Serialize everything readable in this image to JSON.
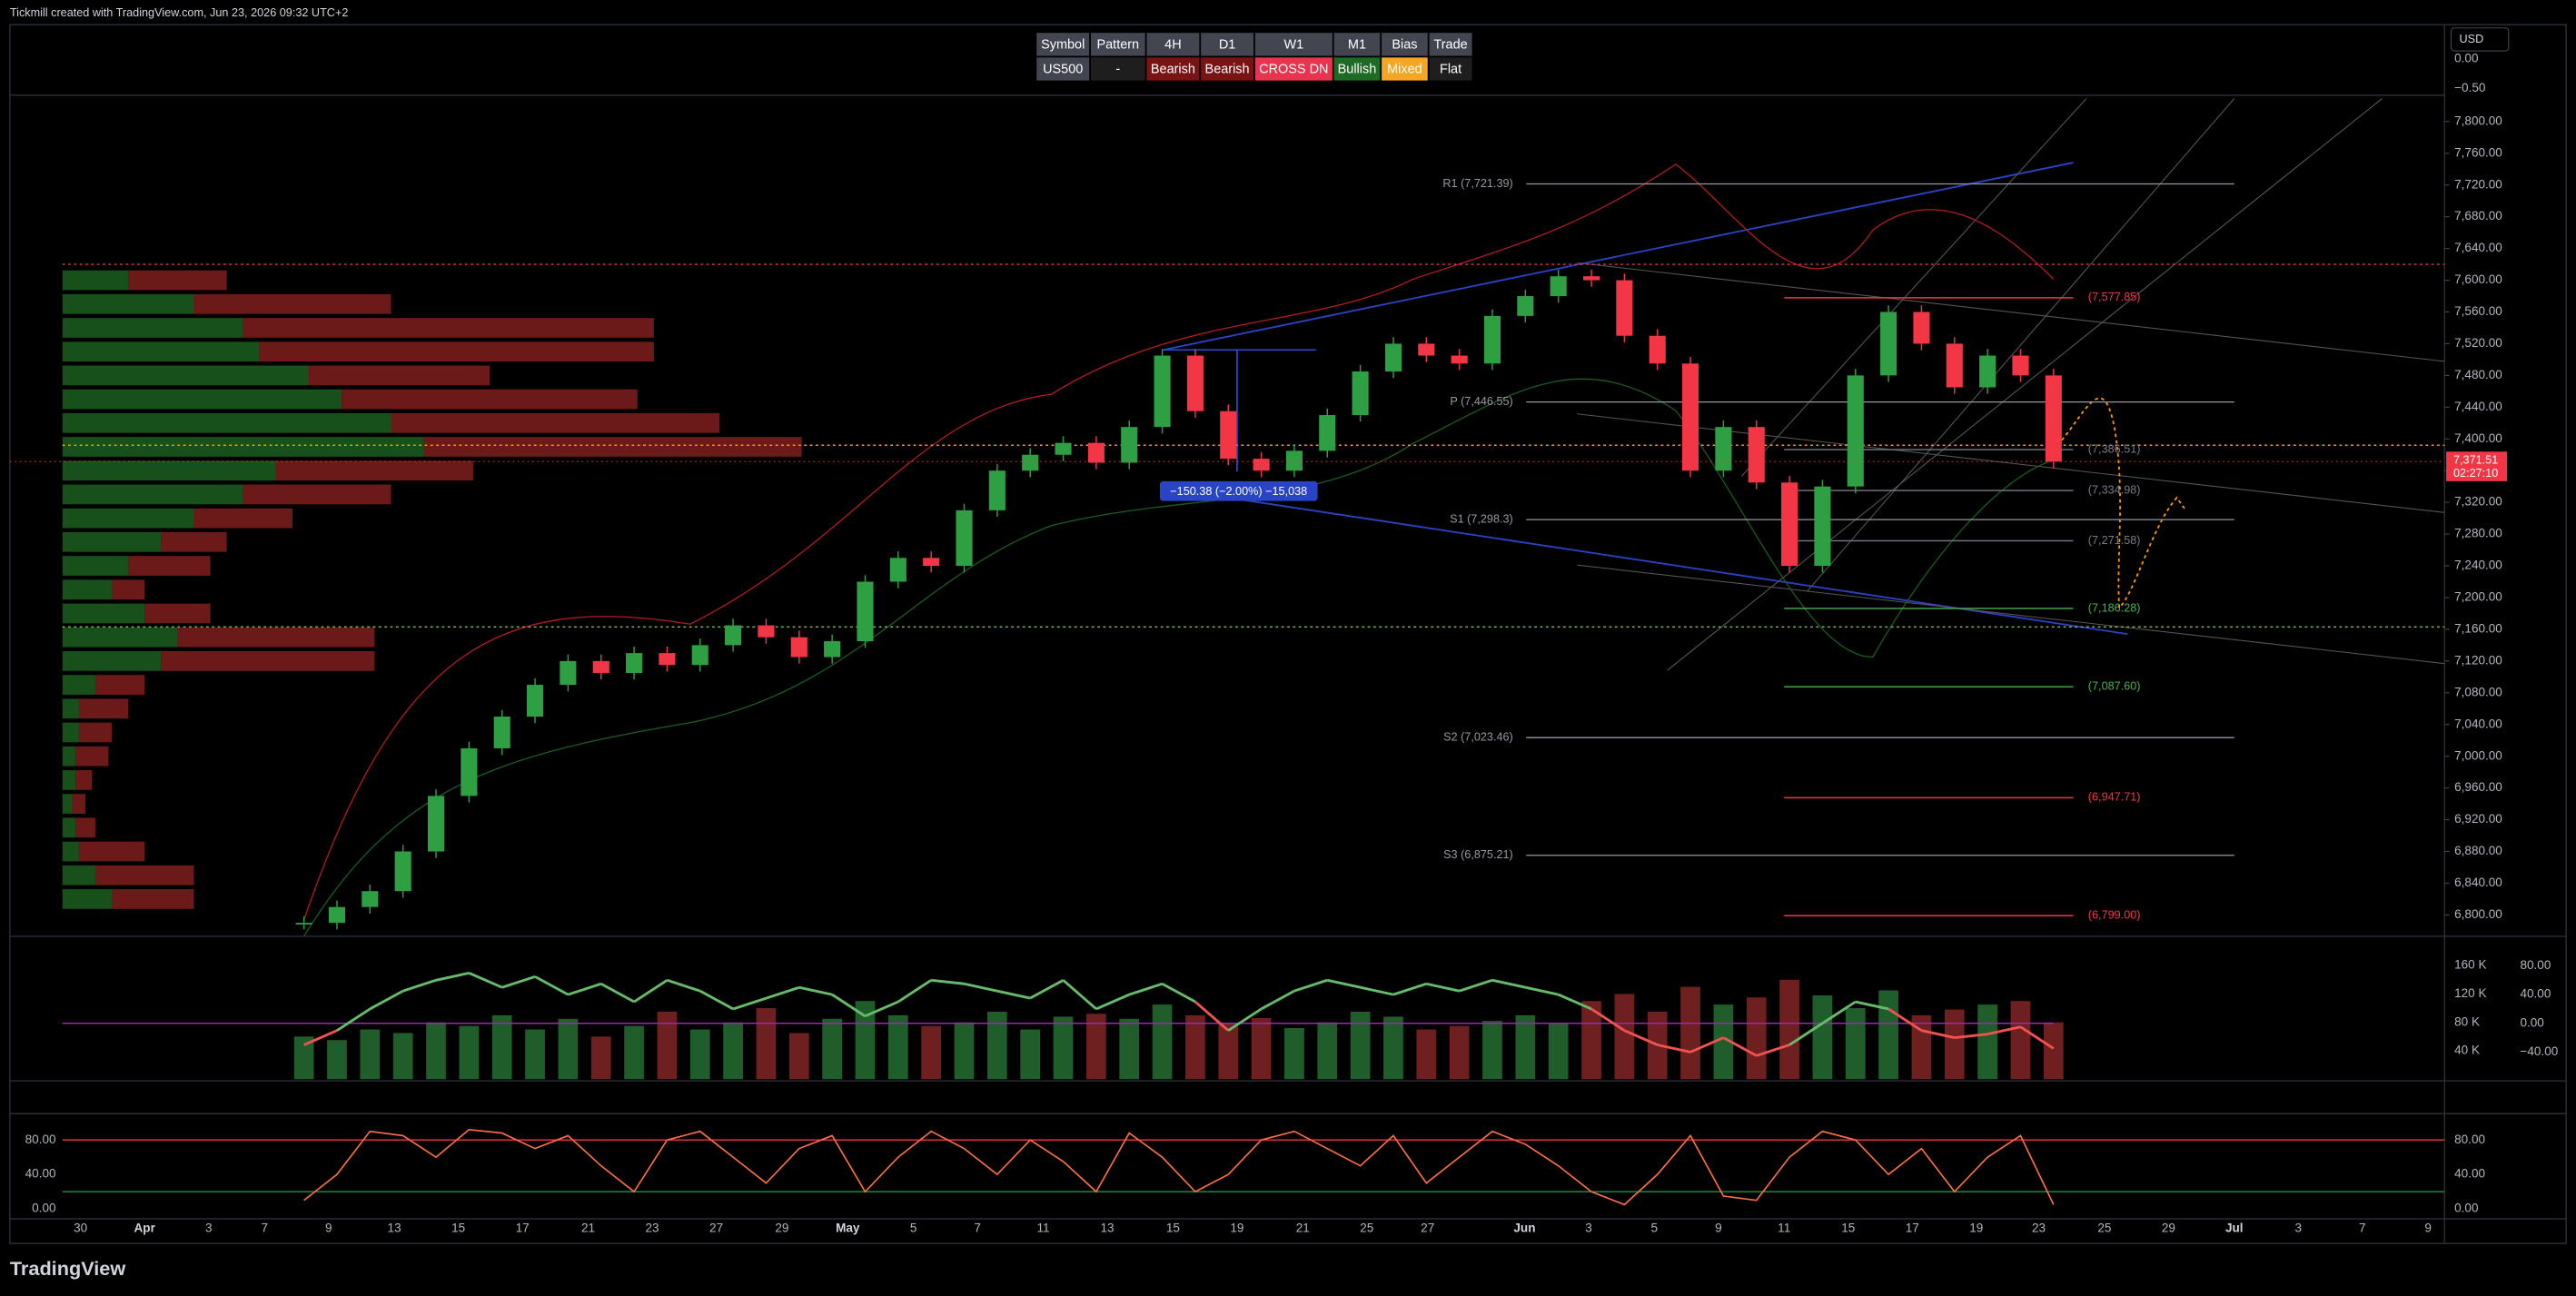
{
  "header": {
    "watermark": "Tickmill created with TradingView.com, Jun 23, 2026 09:32 UTC+2",
    "currency": "USD",
    "top_axis_labels": [
      "0.00",
      "−0.50"
    ],
    "footer": "TradingView"
  },
  "table": {
    "headers": [
      "Symbol",
      "Pattern",
      "4H",
      "D1",
      "W1",
      "M1",
      "Bias",
      "Trade"
    ],
    "row": [
      "US500",
      "-",
      "Bearish",
      "Bearish",
      "CROSS DN",
      "Bullish",
      "Mixed",
      "Flat"
    ],
    "row_colors": [
      "#434651",
      "#1e1e1e",
      "#7a1414",
      "#7a1414",
      "#e8344e",
      "#1e6b24",
      "#f5a623",
      "#1e1e1e"
    ]
  },
  "chart_data": {
    "type": "candlestick",
    "price": {
      "closes": [
        6790,
        6810,
        6830,
        6880,
        6950,
        7010,
        7050,
        7090,
        7120,
        7105,
        7130,
        7115,
        7140,
        7165,
        7150,
        7125,
        7145,
        7220,
        7250,
        7240,
        7310,
        7360,
        7380,
        7395,
        7370,
        7415,
        7505,
        7435,
        7375,
        7360,
        7385,
        7430,
        7485,
        7520,
        7505,
        7495,
        7555,
        7580,
        7605,
        7600,
        7530,
        7495,
        7360,
        7415,
        7345,
        7240,
        7340,
        7480,
        7560,
        7520,
        7465,
        7505,
        7480,
        7371.51
      ],
      "up_color": "#2ea043",
      "down_color": "#f23645"
    },
    "ylim": [
      6800,
      7800
    ],
    "yticks": [
      {
        "value": 7800,
        "label": "7,800.00"
      },
      {
        "value": 7760,
        "label": "7,760.00"
      },
      {
        "value": 7720,
        "label": "7,720.00"
      },
      {
        "value": 7680,
        "label": "7,680.00"
      },
      {
        "value": 7640,
        "label": "7,640.00"
      },
      {
        "value": 7600,
        "label": "7,600.00"
      },
      {
        "value": 7560,
        "label": "7,560.00"
      },
      {
        "value": 7520,
        "label": "7,520.00"
      },
      {
        "value": 7480,
        "label": "7,480.00"
      },
      {
        "value": 7440,
        "label": "7,440.00"
      },
      {
        "value": 7400,
        "label": "7,400.00"
      },
      {
        "value": 7360,
        "label": "7,360.00"
      },
      {
        "value": 7320,
        "label": "7,320.00"
      },
      {
        "value": 7280,
        "label": "7,280.00"
      },
      {
        "value": 7240,
        "label": "7,240.00"
      },
      {
        "value": 7200,
        "label": "7,200.00"
      },
      {
        "value": 7160,
        "label": "7,160.00"
      },
      {
        "value": 7120,
        "label": "7,120.00"
      },
      {
        "value": 7080,
        "label": "7,080.00"
      },
      {
        "value": 7040,
        "label": "7,040.00"
      },
      {
        "value": 7000,
        "label": "7,000.00"
      },
      {
        "value": 6960,
        "label": "6,960.00"
      },
      {
        "value": 6920,
        "label": "6,920.00"
      },
      {
        "value": 6880,
        "label": "6,880.00"
      },
      {
        "value": 6840,
        "label": "6,840.00"
      },
      {
        "value": 6800,
        "label": "6,800.00"
      }
    ],
    "last_price": {
      "value": 7371.51,
      "label": "7,371.51",
      "countdown": "02:27:10"
    },
    "pivots": [
      {
        "label": "R1 (7,721.39)",
        "value": 7721.39
      },
      {
        "label": "P (7,446.55)",
        "value": 7446.55
      },
      {
        "label": "S1 (7,298.3)",
        "value": 7298.3
      },
      {
        "label": "S2 (7,023.46)",
        "value": 7023.46
      },
      {
        "label": "S3 (6,875.21)",
        "value": 6875.21
      }
    ],
    "levels": [
      {
        "label": "(7,577.85)",
        "value": 7577.85,
        "color": "#f23645"
      },
      {
        "label": "(7,386.51)",
        "value": 7386.51,
        "color": "#787b86"
      },
      {
        "label": "(7,334.98)",
        "value": 7334.98,
        "color": "#787b86"
      },
      {
        "label": "(7,271.58)",
        "value": 7271.58,
        "color": "#787b86"
      },
      {
        "label": "(7,186.28)",
        "value": 7186.28,
        "color": "#4caf50"
      },
      {
        "label": "(7,087.60)",
        "value": 7087.6,
        "color": "#4caf50"
      },
      {
        "label": "(6,947.71)",
        "value": 6947.71,
        "color": "#f23645"
      },
      {
        "label": "(6,799.00)",
        "value": 6799,
        "color": "#f23645"
      }
    ],
    "dotted_levels": [
      {
        "value": 7620,
        "color": "#f23645"
      },
      {
        "value": 7392,
        "color": "#ff9800"
      },
      {
        "value": 7163,
        "color": "#8bc34a"
      }
    ],
    "measure": "−150.38 (−2.00%) −15,038",
    "volume_profile": {
      "prices": [
        7600,
        7570,
        7540,
        7510,
        7480,
        7450,
        7420,
        7390,
        7360,
        7330,
        7300,
        7270,
        7240,
        7210,
        7180,
        7150,
        7120,
        7090,
        7060,
        7030,
        7000,
        6970,
        6940,
        6910,
        6880,
        6850,
        6820
      ],
      "buy": [
        40,
        80,
        110,
        120,
        150,
        170,
        200,
        220,
        130,
        110,
        80,
        60,
        40,
        30,
        50,
        70,
        60,
        20,
        10,
        10,
        8,
        8,
        6,
        8,
        10,
        20,
        30
      ],
      "sell": [
        60,
        120,
        250,
        240,
        110,
        180,
        200,
        230,
        120,
        90,
        60,
        40,
        50,
        20,
        40,
        120,
        130,
        30,
        30,
        20,
        20,
        10,
        8,
        12,
        40,
        60,
        50
      ]
    },
    "volume": {
      "values": [
        60,
        55,
        70,
        65,
        80,
        75,
        90,
        70,
        85,
        60,
        75,
        95,
        70,
        80,
        100,
        65,
        85,
        110,
        90,
        75,
        80,
        95,
        70,
        88,
        92,
        85,
        105,
        90,
        78,
        86,
        72,
        80,
        95,
        88,
        70,
        75,
        82,
        90,
        78,
        110,
        120,
        95,
        130,
        105,
        115,
        140,
        118,
        100,
        125,
        90,
        98,
        105,
        110,
        80
      ],
      "yticks": [
        {
          "value": 160,
          "label": "160 K"
        },
        {
          "value": 120,
          "label": "120 K"
        },
        {
          "value": 80,
          "label": "80 K"
        },
        {
          "value": 40,
          "label": "40 K"
        }
      ]
    },
    "oscillator": {
      "values": [
        -30,
        -10,
        20,
        45,
        60,
        70,
        50,
        65,
        40,
        55,
        30,
        60,
        45,
        20,
        35,
        50,
        40,
        10,
        30,
        60,
        55,
        45,
        35,
        60,
        20,
        40,
        55,
        30,
        -10,
        20,
        45,
        60,
        50,
        40,
        55,
        45,
        60,
        50,
        40,
        20,
        -10,
        -30,
        -40,
        -20,
        -45,
        -30,
        0,
        30,
        20,
        -10,
        -20,
        -15,
        -5,
        -35
      ],
      "yticks": [
        {
          "value": 80,
          "label": "80.00"
        },
        {
          "value": 40,
          "label": "40.00"
        },
        {
          "value": 0,
          "label": "0.00"
        },
        {
          "value": -40,
          "label": "−40.00"
        }
      ]
    },
    "stochastic": {
      "values": [
        10,
        40,
        90,
        85,
        60,
        92,
        88,
        70,
        85,
        50,
        20,
        80,
        90,
        60,
        30,
        70,
        85,
        20,
        60,
        90,
        70,
        40,
        80,
        55,
        20,
        88,
        60,
        20,
        40,
        80,
        90,
        70,
        50,
        85,
        30,
        60,
        90,
        75,
        50,
        20,
        5,
        40,
        85,
        15,
        10,
        60,
        90,
        80,
        40,
        70,
        20,
        60,
        85,
        5
      ],
      "bands": [
        80,
        20
      ],
      "yticks": [
        {
          "value": 80,
          "label": "80.00"
        },
        {
          "value": 40,
          "label": "40.00"
        },
        {
          "value": 0,
          "label": "0.00"
        }
      ]
    },
    "xticks": [
      "30",
      "Apr",
      "3",
      "7",
      "9",
      "13",
      "15",
      "17",
      "21",
      "23",
      "27",
      "29",
      "May",
      "5",
      "7",
      "11",
      "13",
      "15",
      "19",
      "21",
      "25",
      "27",
      "Jun",
      "3",
      "5",
      "9",
      "11",
      "15",
      "17",
      "19",
      "23",
      "25",
      "29",
      "Jul",
      "3",
      "7",
      "9"
    ]
  }
}
